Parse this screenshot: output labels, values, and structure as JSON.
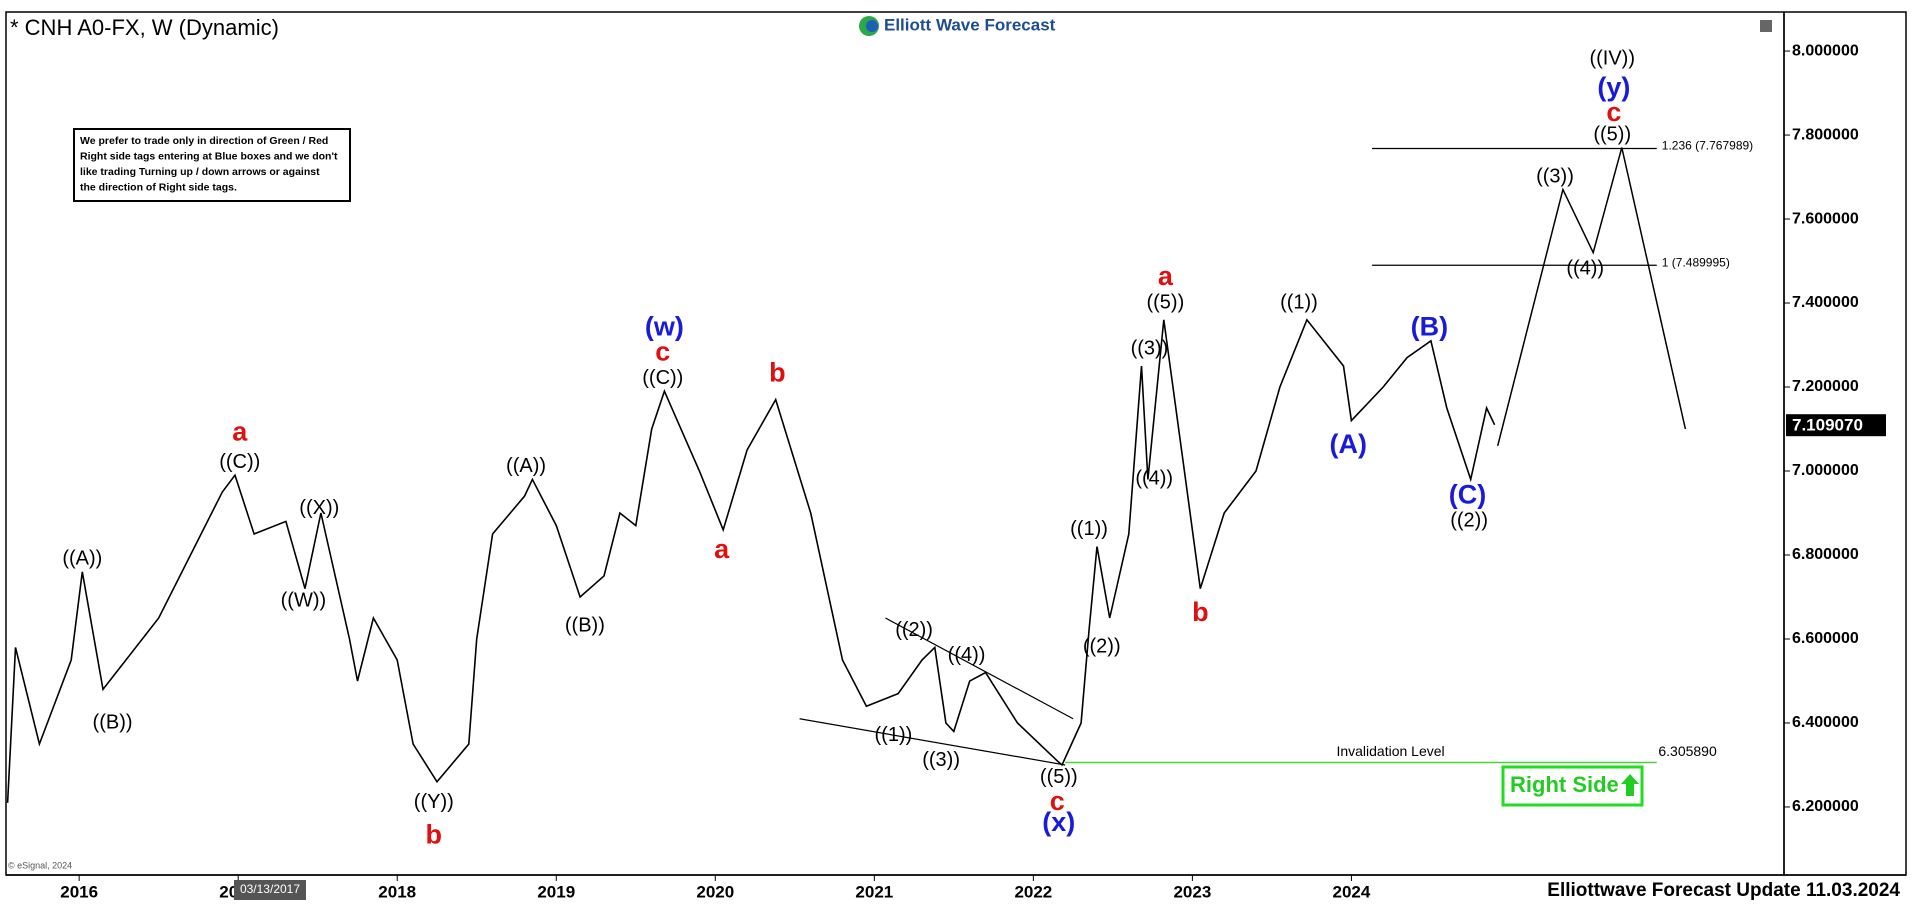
{
  "chart_data": {
    "type": "line",
    "title": "* CNH A0-FX, W (Dynamic)",
    "brand": "Elliott Wave Forecast",
    "note": [
      "We prefer to trade only in direction of Green / Red",
      "Right side tags entering at Blue boxes and we don't",
      "like trading Turning up / down arrows or against",
      "the direction of Right side tags."
    ],
    "source": "© eSignal, 2024",
    "footer": "Elliottwave Forecast Update 11.03.2024",
    "right_side": "Right Side",
    "cursor": {
      "x": 2017.2,
      "label": "03/13/2017"
    },
    "xlim": [
      2015.54,
      2026.72
    ],
    "ylim": [
      6.038,
      8.093
    ],
    "xticks": [
      2016,
      2017,
      2018,
      2019,
      2020,
      2021,
      2022,
      2023,
      2024
    ],
    "yticks": [
      {
        "value": 6.2,
        "label": "6.200000"
      },
      {
        "value": 6.4,
        "label": "6.400000"
      },
      {
        "value": 6.6,
        "label": "6.600000"
      },
      {
        "value": 6.8,
        "label": "6.800000"
      },
      {
        "value": 7.0,
        "label": "7.000000"
      },
      {
        "value": 7.2,
        "label": "7.200000"
      },
      {
        "value": 7.4,
        "label": "7.400000"
      },
      {
        "value": 7.6,
        "label": "7.600000"
      },
      {
        "value": 7.8,
        "label": "7.800000"
      },
      {
        "value": 8.0,
        "label": "8.000000"
      }
    ],
    "x": [
      2015.55,
      2015.6,
      2015.75,
      2015.95,
      2016.02,
      2016.15,
      2016.5,
      2016.9,
      2016.98,
      2017.1,
      2017.3,
      2017.42,
      2017.52,
      2017.7,
      2017.75,
      2017.85,
      2018.0,
      2018.1,
      2018.25,
      2018.45,
      2018.5,
      2018.6,
      2018.8,
      2018.85,
      2019.0,
      2019.15,
      2019.3,
      2019.4,
      2019.5,
      2019.6,
      2019.68,
      2019.9,
      2020.05,
      2020.2,
      2020.38,
      2020.6,
      2020.8,
      2020.95,
      2021.15,
      2021.3,
      2021.38,
      2021.45,
      2021.5,
      2021.6,
      2021.7,
      2021.9,
      2022.15,
      2022.18,
      2022.3,
      2022.35,
      2022.4,
      2022.48,
      2022.6,
      2022.68,
      2022.72,
      2022.82,
      2022.95,
      2023.05,
      2023.2,
      2023.4,
      2023.55,
      2023.72,
      2023.95,
      2024.0,
      2024.2,
      2024.35,
      2024.5,
      2024.6,
      2024.75,
      2024.85,
      2024.9
    ],
    "series": [
      {
        "color": "#000000",
        "values": [
          6.21,
          6.58,
          6.35,
          6.55,
          6.76,
          6.48,
          6.65,
          6.95,
          6.99,
          6.85,
          6.88,
          6.72,
          6.9,
          6.6,
          6.5,
          6.65,
          6.55,
          6.35,
          6.26,
          6.35,
          6.6,
          6.85,
          6.94,
          6.98,
          6.87,
          6.7,
          6.75,
          6.9,
          6.87,
          7.1,
          7.19,
          7.0,
          6.86,
          7.05,
          7.17,
          6.9,
          6.55,
          6.44,
          6.47,
          6.55,
          6.58,
          6.4,
          6.38,
          6.5,
          6.52,
          6.4,
          6.31,
          6.3,
          6.4,
          6.62,
          6.82,
          6.65,
          6.85,
          7.25,
          6.98,
          7.36,
          7.0,
          6.72,
          6.9,
          7.0,
          7.2,
          7.36,
          7.25,
          7.12,
          7.2,
          7.27,
          7.31,
          7.15,
          6.98,
          7.15,
          7.11
        ]
      }
    ],
    "last_price": {
      "value": 7.10907,
      "label": "7.109070"
    },
    "projection": {
      "x": [
        2024.92,
        2025.33,
        2025.52,
        2025.7,
        2026.1
      ],
      "values": [
        7.06,
        7.67,
        7.52,
        7.77,
        7.1
      ]
    },
    "trendlines": [
      {
        "x": [
          2021.07,
          2022.25
        ],
        "values": [
          6.65,
          6.41
        ]
      },
      {
        "x": [
          2020.53,
          2022.2
        ],
        "values": [
          6.41,
          6.3
        ]
      }
    ],
    "levels": [
      {
        "label": "1.236 (7.767989)",
        "value": 7.767989,
        "x": [
          2024.13,
          2025.92
        ]
      },
      {
        "label": "1 (7.489995)",
        "value": 7.489995,
        "x": [
          2024.13,
          2025.92
        ]
      }
    ],
    "invalidation": {
      "label": "Invalidation Level",
      "value": 6.30589,
      "value_label": "6.305890",
      "x": [
        2022.2,
        2025.92
      ],
      "color": "#4cd137"
    },
    "annotations": [
      {
        "text": "((IV))",
        "x": 2025.64,
        "y": 7.98,
        "color": "#000000"
      },
      {
        "text": "(y)",
        "x": 2025.65,
        "y": 7.91,
        "color": "#1a1adb"
      },
      {
        "text": "c",
        "x": 2025.65,
        "y": 7.85,
        "color": "#e01010"
      },
      {
        "text": "((5))",
        "x": 2025.64,
        "y": 7.8,
        "color": "#000000"
      },
      {
        "text": "((3))",
        "x": 2025.28,
        "y": 7.7,
        "color": "#000000"
      },
      {
        "text": "((4))",
        "x": 2025.47,
        "y": 7.48,
        "color": "#000000"
      },
      {
        "text": "(w)",
        "x": 2019.68,
        "y": 7.34,
        "color": "#1a1adb"
      },
      {
        "text": "c",
        "x": 2019.67,
        "y": 7.28,
        "color": "#e01010"
      },
      {
        "text": "((C))",
        "x": 2019.67,
        "y": 7.22,
        "color": "#000000"
      },
      {
        "text": "b",
        "x": 2020.39,
        "y": 7.23,
        "color": "#e01010"
      },
      {
        "text": "a",
        "x": 2020.04,
        "y": 6.81,
        "color": "#e01010"
      },
      {
        "text": "a",
        "x": 2017.01,
        "y": 7.09,
        "color": "#e01010"
      },
      {
        "text": "((C))",
        "x": 2017.01,
        "y": 7.02,
        "color": "#000000"
      },
      {
        "text": "((A))",
        "x": 2016.02,
        "y": 6.79,
        "color": "#000000"
      },
      {
        "text": "((B))",
        "x": 2016.21,
        "y": 6.4,
        "color": "#000000"
      },
      {
        "text": "((X))",
        "x": 2017.51,
        "y": 6.91,
        "color": "#000000"
      },
      {
        "text": "((W))",
        "x": 2017.41,
        "y": 6.69,
        "color": "#000000"
      },
      {
        "text": "((Y))",
        "x": 2018.23,
        "y": 6.21,
        "color": "#000000"
      },
      {
        "text": "b",
        "x": 2018.23,
        "y": 6.13,
        "color": "#e01010"
      },
      {
        "text": "((A))",
        "x": 2018.81,
        "y": 7.01,
        "color": "#000000"
      },
      {
        "text": "((B))",
        "x": 2019.18,
        "y": 6.63,
        "color": "#000000"
      },
      {
        "text": "((1))",
        "x": 2021.12,
        "y": 6.37,
        "color": "#000000"
      },
      {
        "text": "((2))",
        "x": 2021.25,
        "y": 6.62,
        "color": "#000000"
      },
      {
        "text": "((3))",
        "x": 2021.42,
        "y": 6.31,
        "color": "#000000"
      },
      {
        "text": "((4))",
        "x": 2021.58,
        "y": 6.56,
        "color": "#000000"
      },
      {
        "text": "((5))",
        "x": 2022.16,
        "y": 6.27,
        "color": "#000000"
      },
      {
        "text": "c",
        "x": 2022.15,
        "y": 6.21,
        "color": "#e01010"
      },
      {
        "text": "(x)",
        "x": 2022.16,
        "y": 6.16,
        "color": "#1a1adb"
      },
      {
        "text": "((1))",
        "x": 2022.35,
        "y": 6.86,
        "color": "#000000"
      },
      {
        "text": "((2))",
        "x": 2022.43,
        "y": 6.58,
        "color": "#000000"
      },
      {
        "text": "((3))",
        "x": 2022.73,
        "y": 7.29,
        "color": "#000000"
      },
      {
        "text": "((4))",
        "x": 2022.76,
        "y": 6.98,
        "color": "#000000"
      },
      {
        "text": "((5))",
        "x": 2022.83,
        "y": 7.4,
        "color": "#000000"
      },
      {
        "text": "a",
        "x": 2022.83,
        "y": 7.46,
        "color": "#e01010"
      },
      {
        "text": "b",
        "x": 2023.05,
        "y": 6.66,
        "color": "#e01010"
      },
      {
        "text": "((1))",
        "x": 2023.67,
        "y": 7.4,
        "color": "#000000"
      },
      {
        "text": "(A)",
        "x": 2023.98,
        "y": 7.06,
        "color": "#1a1adb"
      },
      {
        "text": "(B)",
        "x": 2024.49,
        "y": 7.34,
        "color": "#1a1adb"
      },
      {
        "text": "(C)",
        "x": 2024.73,
        "y": 6.94,
        "color": "#1a1adb"
      },
      {
        "text": "((2))",
        "x": 2024.74,
        "y": 6.88,
        "color": "#000000"
      }
    ]
  }
}
